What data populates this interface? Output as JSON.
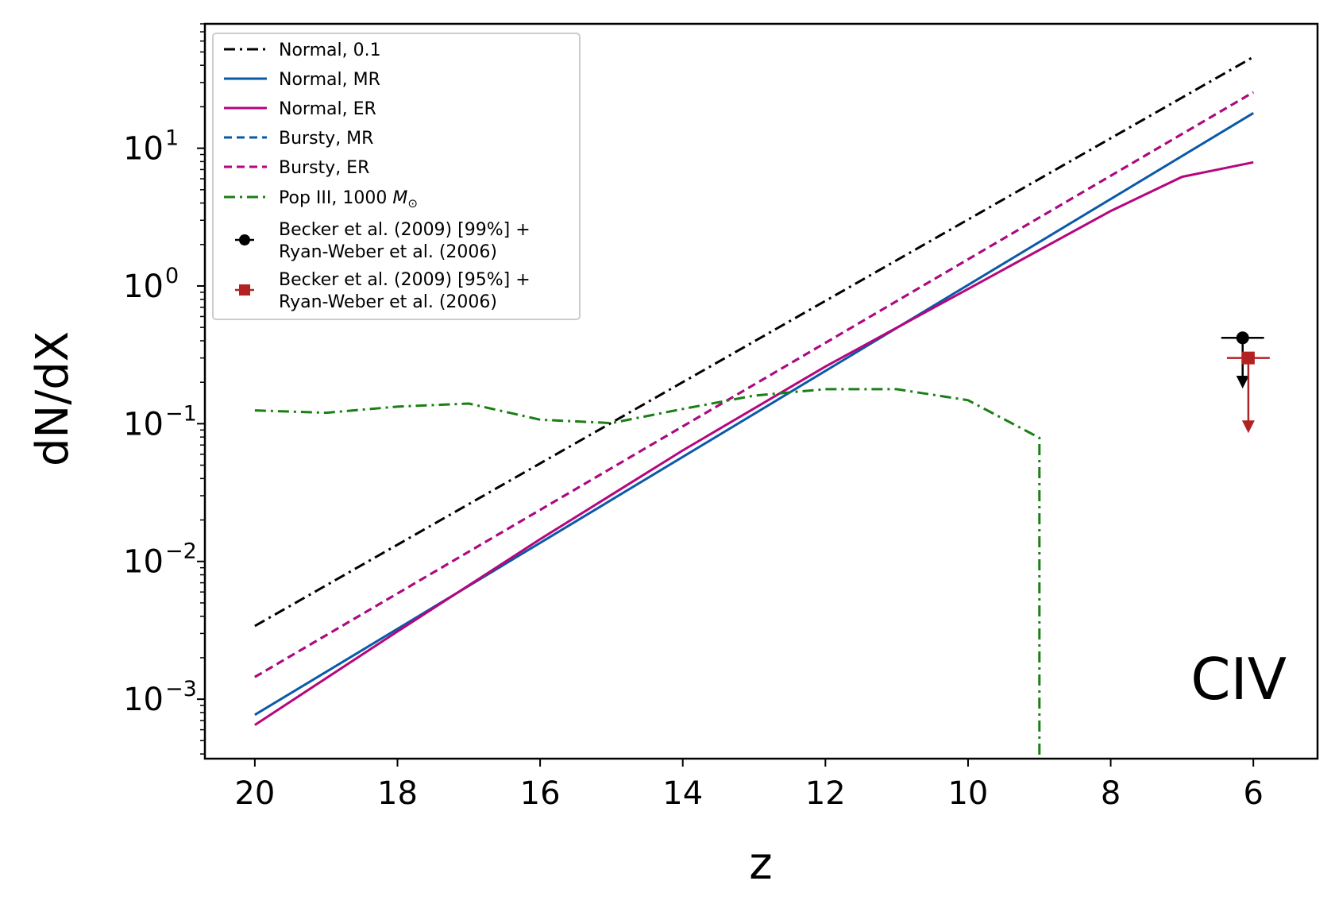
{
  "chart_data": {
    "type": "line",
    "title": "",
    "xlabel": "z",
    "ylabel": "dN/dX",
    "xscale": "linear",
    "yscale": "log",
    "xlim": [
      20.7,
      5.1
    ],
    "ylim": [
      0.00037,
      80
    ],
    "xticks": [
      20,
      18,
      16,
      14,
      12,
      10,
      8,
      6
    ],
    "yticks": [
      {
        "value": 0.001,
        "base": "10",
        "exp": "−3"
      },
      {
        "value": 0.01,
        "base": "10",
        "exp": "−2"
      },
      {
        "value": 0.1,
        "base": "10",
        "exp": "−1"
      },
      {
        "value": 1,
        "base": "10",
        "exp": "0"
      },
      {
        "value": 10,
        "base": "10",
        "exp": "1"
      }
    ],
    "annotation": "CIV",
    "series": [
      {
        "name": "Normal, 0.1",
        "color": "#000000",
        "dash": "dashdot",
        "x": [
          20,
          6
        ],
        "y": [
          0.0034,
          46
        ]
      },
      {
        "name": "Normal, MR",
        "color": "#0a5aa8",
        "dash": "solid",
        "x": [
          20,
          6
        ],
        "y": [
          0.00077,
          18
        ]
      },
      {
        "name": "Normal, ER",
        "color": "#b5067e",
        "dash": "solid",
        "x": [
          20,
          18,
          16,
          14,
          12,
          10,
          8,
          7,
          6
        ],
        "y": [
          0.00065,
          0.0031,
          0.0145,
          0.064,
          0.26,
          0.95,
          3.5,
          6.2,
          7.9
        ]
      },
      {
        "name": "Bursty, MR",
        "color": "#0a5aa8",
        "dash": "dashed",
        "x": [
          20,
          6
        ],
        "y": [
          0.00145,
          25.5
        ]
      },
      {
        "name": "Bursty, ER",
        "color": "#b5067e",
        "dash": "dashed",
        "x": [
          20,
          6
        ],
        "y": [
          0.00145,
          25.5
        ]
      },
      {
        "name": "Pop III, 1000 ",
        "name_math": "M",
        "name_sub": "⊙",
        "color": "#1a7f14",
        "dash": "dashdot",
        "x": [
          20,
          19,
          18,
          17,
          16,
          15,
          14,
          13,
          12,
          11,
          10,
          9,
          9
        ],
        "y": [
          0.125,
          0.12,
          0.133,
          0.14,
          0.107,
          0.101,
          0.128,
          0.16,
          0.178,
          0.178,
          0.148,
          0.079,
          0.00037
        ]
      }
    ],
    "upper_limits": [
      {
        "name": "Becker et al. (2009) [99%] +",
        "name2": " Ryan-Weber et al. (2006)",
        "marker": "circle",
        "color": "#000000",
        "x": 6.15,
        "y": 0.42,
        "xerr": 0.3,
        "arrow_to": 0.19
      },
      {
        "name": "Becker et al. (2009) [95%] +",
        "name2": " Ryan-Weber et al. (2006)",
        "marker": "square",
        "color": "#b22222",
        "x": 6.07,
        "y": 0.3,
        "xerr": 0.3,
        "arrow_to": 0.09
      }
    ]
  }
}
